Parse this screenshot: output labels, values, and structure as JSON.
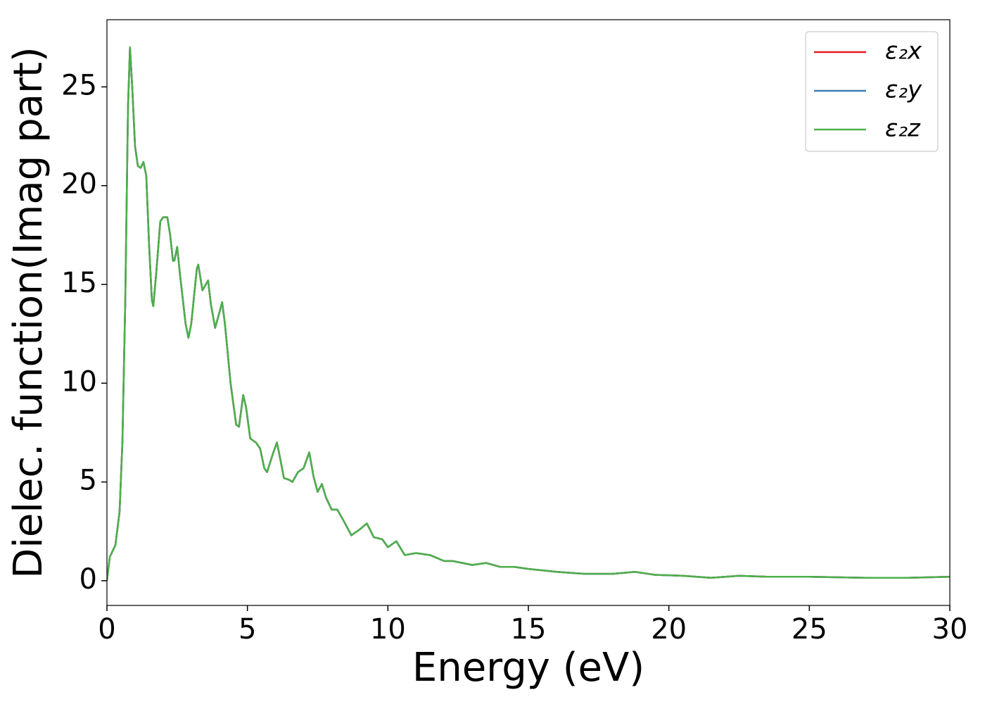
{
  "chart_data": {
    "type": "line",
    "xlabel": "Energy (eV)",
    "ylabel": "Dielec. function(Imag part)",
    "x": [
      0,
      0.1,
      0.3,
      0.45,
      0.55,
      0.65,
      0.75,
      0.82,
      0.9,
      1.0,
      1.1,
      1.2,
      1.3,
      1.4,
      1.5,
      1.6,
      1.65,
      1.75,
      1.9,
      2.0,
      2.15,
      2.25,
      2.35,
      2.4,
      2.5,
      2.6,
      2.8,
      2.9,
      3.0,
      3.2,
      3.25,
      3.4,
      3.6,
      3.7,
      3.85,
      3.95,
      4.1,
      4.2,
      4.4,
      4.6,
      4.7,
      4.85,
      4.95,
      5.1,
      5.3,
      5.45,
      5.6,
      5.7,
      5.9,
      6.05,
      6.15,
      6.3,
      6.5,
      6.6,
      6.8,
      7.0,
      7.2,
      7.35,
      7.5,
      7.65,
      7.8,
      8.0,
      8.2,
      8.4,
      8.7,
      9.0,
      9.25,
      9.5,
      9.8,
      10.0,
      10.3,
      10.6,
      11.0,
      11.5,
      12.0,
      12.3,
      13.0,
      13.5,
      14.0,
      14.5,
      15,
      16,
      17,
      18,
      18.8,
      19.5,
      20.5,
      21.5,
      22.5,
      23.5,
      25,
      27,
      28.5,
      30
    ],
    "series": [
      {
        "name": "ε₂x",
        "color": "#e41a1c",
        "values": [
          0,
          1.2,
          1.8,
          3.5,
          7,
          14,
          24,
          27,
          25,
          22,
          21,
          20.9,
          21.2,
          20.5,
          17,
          14.2,
          13.9,
          15.5,
          18.2,
          18.4,
          18.4,
          17.5,
          16.2,
          16.2,
          16.9,
          15.5,
          13,
          12.3,
          13,
          15.8,
          16,
          14.7,
          15.2,
          14,
          12.8,
          13.3,
          14.1,
          13,
          10,
          7.9,
          7.8,
          9.4,
          8.8,
          7.2,
          7,
          6.7,
          5.7,
          5.5,
          6.4,
          7,
          6.3,
          5.2,
          5.1,
          5,
          5.5,
          5.7,
          6.5,
          5.3,
          4.5,
          4.9,
          4.2,
          3.6,
          3.6,
          3.1,
          2.3,
          2.6,
          2.9,
          2.2,
          2.1,
          1.7,
          2,
          1.3,
          1.4,
          1.3,
          1.0,
          1.0,
          0.8,
          0.9,
          0.7,
          0.7,
          0.6,
          0.45,
          0.35,
          0.35,
          0.45,
          0.3,
          0.25,
          0.15,
          0.25,
          0.2,
          0.2,
          0.15,
          0.15,
          0.2
        ]
      },
      {
        "name": "ε₂y",
        "color": "#377eb8",
        "values": [
          0,
          1.2,
          1.8,
          3.5,
          7,
          14,
          24,
          27,
          25,
          22,
          21,
          20.9,
          21.2,
          20.5,
          17,
          14.2,
          13.9,
          15.5,
          18.2,
          18.4,
          18.4,
          17.5,
          16.2,
          16.2,
          16.9,
          15.5,
          13,
          12.3,
          13,
          15.8,
          16,
          14.7,
          15.2,
          14,
          12.8,
          13.3,
          14.1,
          13,
          10,
          7.9,
          7.8,
          9.4,
          8.8,
          7.2,
          7,
          6.7,
          5.7,
          5.5,
          6.4,
          7,
          6.3,
          5.2,
          5.1,
          5,
          5.5,
          5.7,
          6.5,
          5.3,
          4.5,
          4.9,
          4.2,
          3.6,
          3.6,
          3.1,
          2.3,
          2.6,
          2.9,
          2.2,
          2.1,
          1.7,
          2,
          1.3,
          1.4,
          1.3,
          1.0,
          1.0,
          0.8,
          0.9,
          0.7,
          0.7,
          0.6,
          0.45,
          0.35,
          0.35,
          0.45,
          0.3,
          0.25,
          0.15,
          0.25,
          0.2,
          0.2,
          0.15,
          0.15,
          0.2
        ]
      },
      {
        "name": "ε₂z",
        "color": "#4daf4a",
        "values": [
          0,
          1.2,
          1.8,
          3.5,
          7,
          14,
          24,
          27,
          25,
          22,
          21,
          20.9,
          21.2,
          20.5,
          17,
          14.2,
          13.9,
          15.5,
          18.2,
          18.4,
          18.4,
          17.5,
          16.2,
          16.2,
          16.9,
          15.5,
          13,
          12.3,
          13,
          15.8,
          16,
          14.7,
          15.2,
          14,
          12.8,
          13.3,
          14.1,
          13,
          10,
          7.9,
          7.8,
          9.4,
          8.8,
          7.2,
          7,
          6.7,
          5.7,
          5.5,
          6.4,
          7,
          6.3,
          5.2,
          5.1,
          5,
          5.5,
          5.7,
          6.5,
          5.3,
          4.5,
          4.9,
          4.2,
          3.6,
          3.6,
          3.1,
          2.3,
          2.6,
          2.9,
          2.2,
          2.1,
          1.7,
          2,
          1.3,
          1.4,
          1.3,
          1.0,
          1.0,
          0.8,
          0.9,
          0.7,
          0.7,
          0.6,
          0.45,
          0.35,
          0.35,
          0.45,
          0.3,
          0.25,
          0.15,
          0.25,
          0.2,
          0.2,
          0.15,
          0.15,
          0.2
        ]
      }
    ],
    "xlim": [
      0,
      30
    ],
    "xticks": [
      0,
      5,
      10,
      15,
      20,
      25,
      30
    ],
    "ylim": [
      -1.25,
      28.4
    ],
    "yticks": [
      0,
      5,
      10,
      15,
      20,
      25
    ],
    "legend": "upper right"
  }
}
